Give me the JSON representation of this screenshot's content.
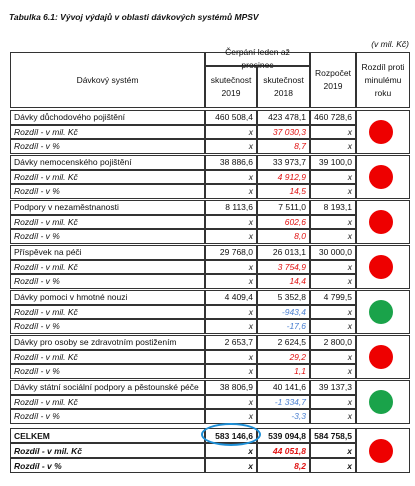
{
  "header": {
    "title": "Tabulka 6.1: Vývoj výdajů v oblasti dávkových systémů MPSV",
    "unit": "(v mil. Kč)"
  },
  "table": {
    "columns": {
      "system": "Dávkový systém",
      "span": "Čerpání leden až prosinec",
      "actual_2019": "skutečnost 2019",
      "actual_2018": "skutečnost 2018",
      "budget": "Rozpočet 2019",
      "change": "Rozdíl proti minulému roku"
    },
    "groups": [
      {
        "rows": [
          [
            "Dávky důchodového pojištění",
            "460 508,4",
            "423 478,1",
            "460 728,6"
          ],
          [
            "Rozdíl - v mil. Kč",
            "x",
            "37 030,3",
            "x"
          ],
          [
            "Rozdíl - v %",
            "x",
            "8,7",
            "x"
          ]
        ],
        "diff_color": "#e01010",
        "indicator": "#ee0000"
      },
      {
        "rows": [
          [
            "Dávky nemocenského pojištění",
            "38 886,6",
            "33 973,7",
            "39 100,0"
          ],
          [
            "Rozdíl - v mil. Kč",
            "x",
            "4 912,9",
            "x"
          ],
          [
            "Rozdíl - v %",
            "x",
            "14,5",
            "x"
          ]
        ],
        "diff_color": "#e01010",
        "indicator": "#ee0000"
      },
      {
        "rows": [
          [
            "Podpory v nezaměstnanosti",
            "8 113,6",
            "7 511,0",
            "8 193,1"
          ],
          [
            "Rozdíl - v mil. Kč",
            "x",
            "602,6",
            "x"
          ],
          [
            "Rozdíl - v %",
            "x",
            "8,0",
            "x"
          ]
        ],
        "diff_color": "#e01010",
        "indicator": "#ee0000"
      },
      {
        "rows": [
          [
            "Příspěvek na péči",
            "29 768,0",
            "26 013,1",
            "30 000,0"
          ],
          [
            "Rozdíl - v mil. Kč",
            "x",
            "3 754,9",
            "x"
          ],
          [
            "Rozdíl - v %",
            "x",
            "14,4",
            "x"
          ]
        ],
        "diff_color": "#e01010",
        "indicator": "#ee0000"
      },
      {
        "rows": [
          [
            "Dávky pomoci v hmotné nouzi",
            "4 409,4",
            "5 352,8",
            "4 799,5"
          ],
          [
            "Rozdíl - v mil. Kč",
            "x",
            "-943,4",
            "x"
          ],
          [
            "Rozdíl - v %",
            "x",
            "-17,6",
            "x"
          ]
        ],
        "diff_color": "#4a7fd0",
        "indicator": "#1aa34a"
      },
      {
        "rows": [
          [
            "Dávky pro osoby se zdravotním postižením",
            "2 653,7",
            "2 624,5",
            "2 800,0"
          ],
          [
            "Rozdíl - v mil. Kč",
            "x",
            "29,2",
            "x"
          ],
          [
            "Rozdíl - v %",
            "x",
            "1,1",
            "x"
          ]
        ],
        "diff_color": "#e01010",
        "indicator": "#ee0000"
      },
      {
        "rows": [
          [
            "Dávky státní sociální podpory a pěstounské péče",
            "38 806,9",
            "40 141,6",
            "39 137,3"
          ],
          [
            "Rozdíl - v mil. Kč",
            "x",
            "-1 334,7",
            "x"
          ],
          [
            "Rozdíl - v %",
            "x",
            "-3,3",
            "x"
          ]
        ],
        "diff_color": "#4a7fd0",
        "indicator": "#1aa34a"
      }
    ],
    "total": {
      "rows": [
        [
          "CELKEM",
          "583 146,6",
          "539 094,8",
          "584 758,5"
        ],
        [
          "Rozdíl - v mil. Kč",
          "x",
          "44 051,8",
          "x"
        ],
        [
          "Rozdíl - v %",
          "x",
          "8,2",
          "x"
        ]
      ],
      "diff_color": "#e01010",
      "indicator": "#ee0000"
    }
  }
}
